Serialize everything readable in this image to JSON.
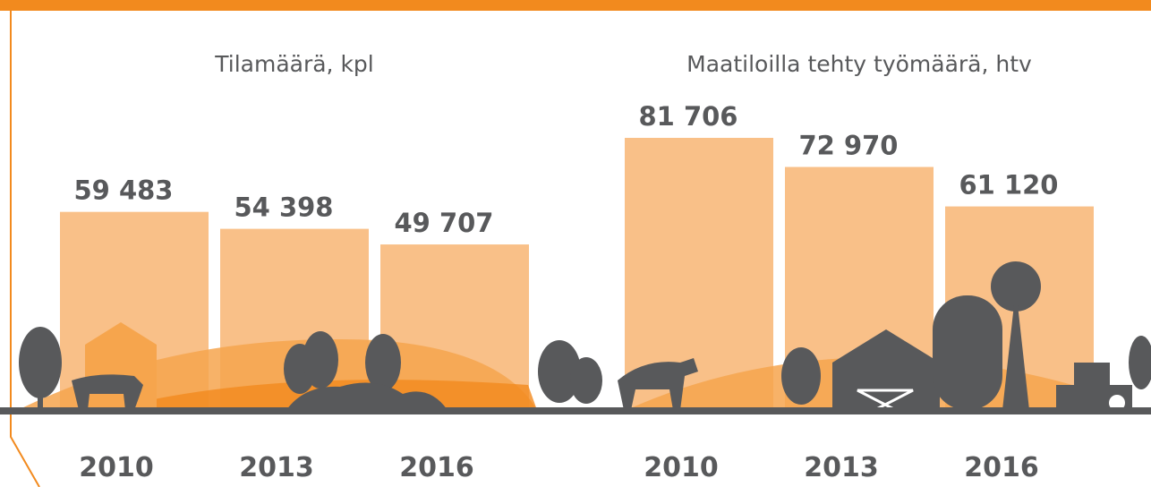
{
  "chart_data": [
    {
      "type": "bar",
      "title": "Tilamäärä, kpl",
      "categories": [
        "2010",
        "2013",
        "2016"
      ],
      "values": [
        59483,
        54398,
        49707
      ],
      "value_labels": [
        "59 483",
        "54 398",
        "49 707"
      ],
      "color": "#f9c088"
    },
    {
      "type": "bar",
      "title": "Maatiloilla tehty työmäärä, htv",
      "categories": [
        "2010",
        "2013",
        "2016"
      ],
      "values": [
        81706,
        72970,
        61120
      ],
      "value_labels": [
        "81 706",
        "72 970",
        "61 120"
      ],
      "color": "#f9c088"
    }
  ]
}
